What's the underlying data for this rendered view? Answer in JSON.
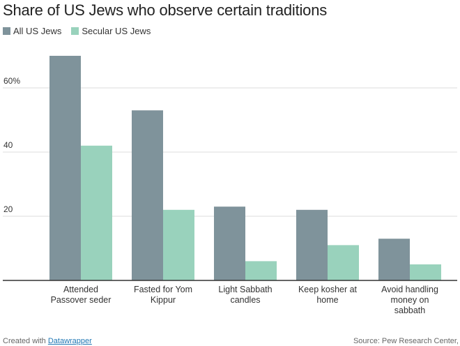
{
  "title": "Share of US Jews who observe certain traditions",
  "legend": [
    {
      "label": "All US Jews",
      "color": "#7f939b"
    },
    {
      "label": "Secular US Jews",
      "color": "#99d2bc"
    }
  ],
  "chart_data": {
    "type": "bar",
    "title": "Share of US Jews who observe certain traditions",
    "categories": [
      [
        "Attended",
        "Passover seder"
      ],
      [
        "Fasted for Yom",
        "Kippur"
      ],
      [
        "Light Sabbath",
        "candles"
      ],
      [
        "Keep kosher at",
        "home"
      ],
      [
        "Avoid handling",
        "money on",
        "sabbath"
      ]
    ],
    "series": [
      {
        "name": "All US Jews",
        "color": "#7f939b",
        "values": [
          70,
          53,
          23,
          22,
          13
        ]
      },
      {
        "name": "Secular US Jews",
        "color": "#99d2bc",
        "values": [
          42,
          22,
          6,
          11,
          5
        ]
      }
    ],
    "yticks": [
      {
        "value": 20,
        "label": "20"
      },
      {
        "value": 40,
        "label": "40"
      },
      {
        "value": 60,
        "label": "60%"
      }
    ],
    "ylim": [
      0,
      70
    ],
    "grid": true,
    "legend_position": "top-left"
  },
  "footer": {
    "created_prefix": "Created with",
    "created_link": "Datawrapper",
    "source": "Source: Pew Research Center,"
  }
}
